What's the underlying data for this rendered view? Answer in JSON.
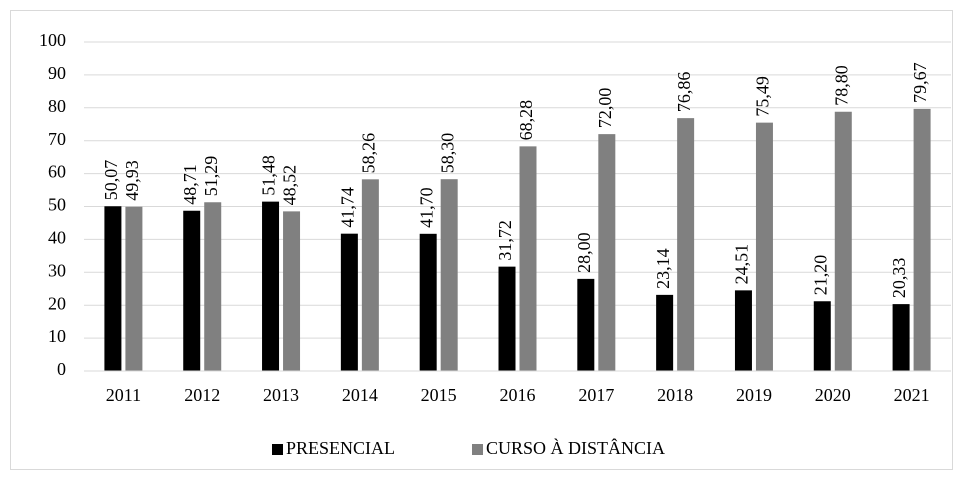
{
  "chart_data": {
    "type": "bar",
    "categories": [
      "2011",
      "2012",
      "2013",
      "2014",
      "2015",
      "2016",
      "2017",
      "2018",
      "2019",
      "2020",
      "2021"
    ],
    "series": [
      {
        "name": "PRESENCIAL",
        "color": "#000000",
        "values": [
          50.07,
          48.71,
          51.48,
          41.74,
          41.7,
          31.72,
          28.0,
          23.14,
          24.51,
          21.2,
          20.33
        ],
        "value_labels": [
          "50,07",
          "48,71",
          "51,48",
          "41,74",
          "41,70",
          "31,72",
          "28,00",
          "23,14",
          "24,51",
          "21,20",
          "20,33"
        ]
      },
      {
        "name": "CURSO À DISTÂNCIA",
        "color": "#808080",
        "values": [
          49.93,
          51.29,
          48.52,
          58.26,
          58.3,
          68.28,
          72.0,
          76.86,
          75.49,
          78.8,
          79.67
        ],
        "value_labels": [
          "49,93",
          "51,29",
          "48,52",
          "58,26",
          "58,30",
          "68,28",
          "72,00",
          "76,86",
          "75,49",
          "78,80",
          "79,67"
        ]
      }
    ],
    "ylim": [
      0,
      100
    ],
    "yticks": [
      0,
      10,
      20,
      30,
      40,
      50,
      60,
      70,
      80,
      90,
      100
    ],
    "grid": true,
    "legend": "bottom"
  }
}
